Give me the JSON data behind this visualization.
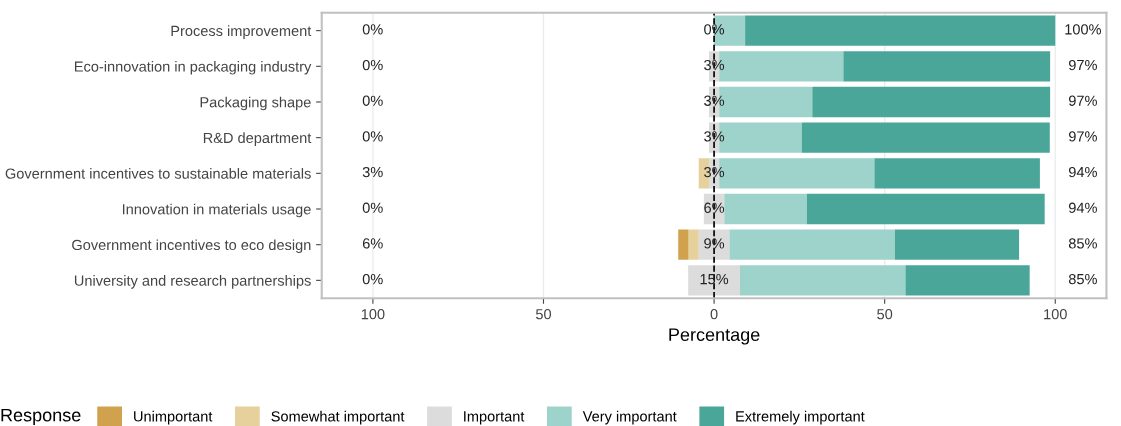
{
  "chart_data": {
    "type": "bar",
    "orientation": "horizontal",
    "stacked": true,
    "categories": [
      "Process improvement",
      "Eco-innovation in packaging industry",
      "Packaging shape",
      "R&D department",
      "Government incentives to sustainable materials",
      "Innovation in materials usage",
      "Government incentives to eco design",
      "University and research partnerships"
    ],
    "series": [
      {
        "name": "Important",
        "color": "#dcdcdc",
        "values": [
          0,
          -1.5,
          -1.5,
          -1.5,
          -1.5,
          -3.0,
          -4.5,
          -7.6
        ]
      },
      {
        "name": "Somewhat important",
        "color": "#e6d09c",
        "values": [
          0,
          0,
          0,
          0,
          -3.0,
          0,
          -3.0,
          0
        ]
      },
      {
        "name": "Unimportant",
        "color": "#d0a24e",
        "values": [
          0,
          0,
          0,
          0,
          0,
          0,
          -3.0,
          0
        ]
      },
      {
        "color": "#dcdcdc",
        "values": [
          0,
          1.5,
          1.5,
          1.5,
          1.5,
          3.0,
          4.5,
          7.6
        ]
      },
      {
        "name": "Very important",
        "color": "#9dd3cb",
        "values": [
          9.1,
          36.4,
          27.3,
          24.2,
          45.5,
          24.2,
          48.5,
          48.5
        ]
      },
      {
        "name": "Extremely important",
        "color": "#4aa698",
        "values": [
          90.9,
          60.6,
          69.7,
          72.7,
          48.5,
          69.7,
          36.4,
          36.4
        ]
      }
    ],
    "xlim": [
      -115,
      115
    ],
    "xticks": [
      {
        "value": -100,
        "label": "100"
      },
      {
        "value": -50,
        "label": "50"
      },
      0,
      50,
      100
    ],
    "xlabel": "Percentage",
    "legend_title": "Response",
    "legend": "bottom",
    "grid": "x",
    "ref_lines": [
      {
        "axis": "x",
        "value": 0,
        "color": "#000000",
        "line_style": "dashed"
      }
    ],
    "annotations": [
      "0%",
      "0%",
      "0%",
      "0%",
      "3%",
      "0%",
      "6%",
      "0%",
      "0%",
      "3%",
      "3%",
      "3%",
      "3%",
      "6%",
      "9%",
      "15%",
      "100%",
      "97%",
      "97%",
      "97%",
      "94%",
      "94%",
      "85%",
      "85%"
    ]
  }
}
